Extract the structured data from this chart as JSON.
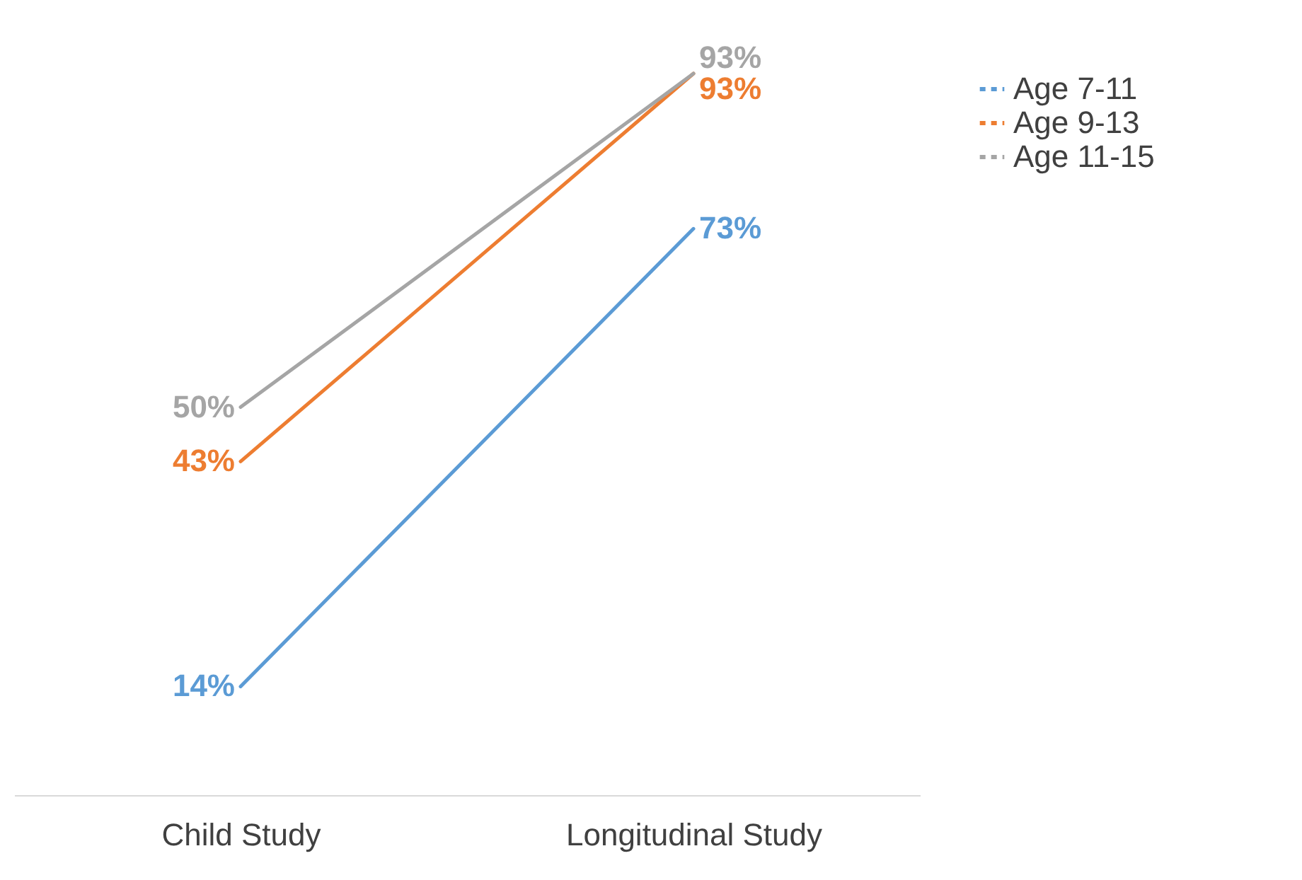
{
  "chart_data": {
    "type": "line",
    "categories": [
      "Child Study",
      "Longitudinal Study"
    ],
    "series": [
      {
        "name": "Age 7-11",
        "color": "#5b9bd5",
        "values": [
          14,
          73
        ],
        "value_labels": [
          "14%",
          "73%"
        ]
      },
      {
        "name": "Age 9-13",
        "color": "#ed7d31",
        "values": [
          43,
          93
        ],
        "value_labels": [
          "43%",
          "93%"
        ]
      },
      {
        "name": "Age 11-15",
        "color": "#a5a5a5",
        "values": [
          50,
          93
        ],
        "value_labels": [
          "50%",
          "93%"
        ]
      }
    ],
    "legend": "right",
    "marker": "none",
    "line_style": "solid"
  }
}
